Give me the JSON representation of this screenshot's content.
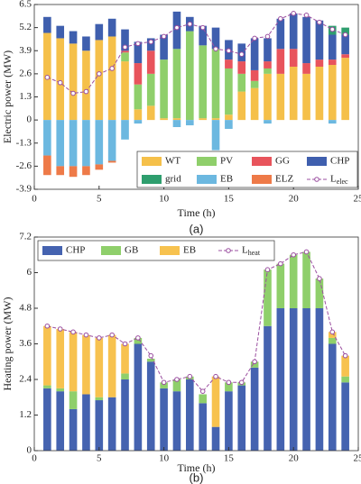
{
  "chart_data": [
    {
      "type": "bar",
      "stacked": true,
      "caption": "(a)",
      "xlabel": "Time (h)",
      "ylabel": "Electric power (MW)",
      "x": [
        1,
        2,
        3,
        4,
        5,
        6,
        7,
        8,
        9,
        10,
        11,
        12,
        13,
        14,
        15,
        16,
        17,
        18,
        19,
        20,
        21,
        22,
        23,
        24
      ],
      "xlim": [
        0,
        25
      ],
      "xticks": [
        0,
        5,
        10,
        15,
        20,
        25
      ],
      "ylim": [
        -3.9,
        6.5
      ],
      "yticks": [
        -3.9,
        -2.6,
        -1.3,
        0,
        1.3,
        2.6,
        3.9,
        5.2,
        6.5
      ],
      "legend": "lower right",
      "series": [
        {
          "name": "WT",
          "type": "bar",
          "color": "#f5c04a",
          "values": [
            4.9,
            4.6,
            4.3,
            3.9,
            4.5,
            4.7,
            3.3,
            0.6,
            0.8,
            0.1,
            0.1,
            0,
            0.1,
            0.1,
            0.3,
            1.6,
            1.8,
            2.6,
            2.6,
            3.0,
            2.6,
            3.0,
            3.1,
            3.5
          ]
        },
        {
          "name": "PV",
          "type": "bar",
          "color": "#8fcf6b",
          "values": [
            0,
            0,
            0,
            0,
            0,
            0,
            0.5,
            1.4,
            1.8,
            3.3,
            3.9,
            5.0,
            4.1,
            3.9,
            2.6,
            1.0,
            0.4,
            0.3,
            0,
            0,
            0,
            0,
            0,
            0
          ]
        },
        {
          "name": "GG",
          "type": "bar",
          "color": "#e8545c",
          "values": [
            0,
            0,
            0,
            0,
            0,
            0,
            0.1,
            1.2,
            1.3,
            0,
            0,
            0,
            0,
            0,
            0.5,
            0.7,
            0.6,
            0.4,
            1.4,
            1.0,
            0.6,
            0.4,
            0.3,
            0.2
          ]
        },
        {
          "name": "CHP",
          "type": "bar",
          "color": "#3f5fae",
          "values": [
            0.9,
            0.7,
            0.7,
            0.8,
            0.9,
            1.0,
            1.2,
            1.2,
            0.7,
            1.4,
            2.1,
            0.8,
            1.1,
            1.2,
            1.1,
            1.0,
            1.8,
            1.3,
            1.7,
            2.0,
            2.6,
            2.2,
            1.4,
            1.1
          ]
        },
        {
          "name": "grid",
          "type": "bar",
          "color": "#2e9e6e",
          "values": [
            0,
            0,
            0,
            0,
            0,
            0,
            0,
            0,
            0,
            0,
            0,
            0,
            0,
            0,
            0,
            0,
            0,
            0,
            0,
            0,
            0,
            0,
            0.5,
            0.4
          ]
        },
        {
          "name": "EB",
          "type": "bar",
          "color": "#6cb8e0",
          "values": [
            -2.0,
            -2.6,
            -2.6,
            -2.6,
            -2.5,
            -2.3,
            -1.1,
            -0.2,
            0,
            0,
            -0.4,
            -0.3,
            0,
            -1.7,
            -0.5,
            0,
            0,
            -0.2,
            0,
            0,
            0,
            0,
            -0.2,
            0
          ]
        },
        {
          "name": "ELZ",
          "type": "bar",
          "color": "#ee7a48",
          "values": [
            -1.1,
            -0.5,
            -0.6,
            -0.5,
            -0.3,
            -0.1,
            0,
            0,
            0,
            0,
            0,
            0,
            0,
            0,
            0,
            0,
            0,
            0,
            0,
            0,
            0,
            0,
            0,
            0
          ]
        },
        {
          "name": "L",
          "name_sub": "elec",
          "type": "line",
          "color": "#9b4fa0",
          "values": [
            2.4,
            2.1,
            1.5,
            1.6,
            2.6,
            2.9,
            4.1,
            4.3,
            4.4,
            4.7,
            5.2,
            5.4,
            5.2,
            4.0,
            3.9,
            3.7,
            4.6,
            4.7,
            5.7,
            6.0,
            5.9,
            5.5,
            5.1,
            4.8
          ]
        }
      ]
    },
    {
      "type": "bar",
      "stacked": true,
      "caption": "(b)",
      "xlabel": "Time (h)",
      "ylabel": "Heating power (MW)",
      "x": [
        1,
        2,
        3,
        4,
        5,
        6,
        7,
        8,
        9,
        10,
        11,
        12,
        13,
        14,
        15,
        16,
        17,
        18,
        19,
        20,
        21,
        22,
        23,
        24
      ],
      "xlim": [
        0,
        25
      ],
      "xticks": [
        0,
        5,
        10,
        15,
        20,
        25
      ],
      "ylim": [
        0,
        7.2
      ],
      "yticks": [
        0,
        1.2,
        2.4,
        3.6,
        4.8,
        6,
        7.2
      ],
      "legend": "upper left",
      "series": [
        {
          "name": "CHP",
          "type": "bar",
          "color": "#4563b0",
          "values": [
            2.1,
            2.0,
            1.4,
            1.9,
            1.7,
            1.8,
            2.4,
            3.6,
            3.0,
            2.1,
            2.0,
            2.4,
            1.6,
            0.8,
            2.0,
            2.2,
            2.8,
            4.2,
            4.8,
            4.8,
            4.8,
            4.8,
            3.6,
            2.3
          ]
        },
        {
          "name": "GB",
          "type": "bar",
          "color": "#8fcf6b",
          "values": [
            0.1,
            0.1,
            0.6,
            0,
            0.1,
            0,
            0.2,
            0.2,
            0.1,
            0.2,
            0.4,
            0.1,
            0.3,
            0,
            0.3,
            0.1,
            0.2,
            1.9,
            1.5,
            1.8,
            1.9,
            1.0,
            0.2,
            0.2
          ]
        },
        {
          "name": "EB",
          "type": "bar",
          "color": "#f7c24f",
          "values": [
            2.0,
            2.0,
            2.0,
            2.0,
            2.0,
            2.1,
            1.0,
            0,
            0,
            0,
            0,
            0,
            0,
            1.7,
            0,
            0,
            0,
            0,
            0,
            0,
            0,
            0,
            0.2,
            0.7
          ]
        },
        {
          "name": "L",
          "name_sub": "heat",
          "type": "line",
          "color": "#9b4fa0",
          "values": [
            4.2,
            4.1,
            4.0,
            3.9,
            3.8,
            3.9,
            3.6,
            3.8,
            3.2,
            2.3,
            2.4,
            2.5,
            2.0,
            2.5,
            2.3,
            2.3,
            3.0,
            6.1,
            6.3,
            6.6,
            6.7,
            5.8,
            4.0,
            3.2
          ]
        }
      ]
    }
  ]
}
